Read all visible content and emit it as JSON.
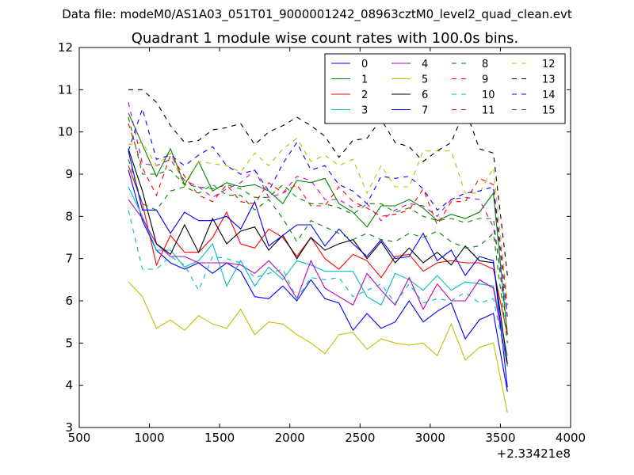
{
  "chart_data": {
    "type": "line",
    "suptitle": "Data file: modeM0/AS1A03_051T01_9000001242_08963cztM0_level2_quad_clean.evt",
    "title": "Quadrant 1 module wise count rates with 100.0s bins.",
    "xlabel": "",
    "ylabel": "",
    "x_offset_label": "+2.33421e8",
    "xlim": [
      500,
      4000
    ],
    "ylim": [
      3,
      12
    ],
    "x_ticks": [
      500,
      1000,
      1500,
      2000,
      2500,
      3000,
      3500,
      4000
    ],
    "y_ticks": [
      3,
      4,
      5,
      6,
      7,
      8,
      9,
      10,
      11,
      12
    ],
    "x": [
      850,
      950,
      1050,
      1150,
      1250,
      1350,
      1450,
      1550,
      1650,
      1750,
      1850,
      1950,
      2050,
      2150,
      2250,
      2350,
      2450,
      2550,
      2650,
      2750,
      2850,
      2950,
      3050,
      3150,
      3250,
      3350,
      3450,
      3550
    ],
    "legend_location": "upper right, 4 columns",
    "series": [
      {
        "name": "0",
        "color": "#0000ff",
        "dash": "solid",
        "values": [
          9.1,
          7.9,
          7.2,
          6.9,
          6.75,
          6.9,
          6.65,
          6.9,
          6.7,
          6.1,
          6.05,
          6.35,
          6.0,
          6.5,
          6.05,
          5.95,
          5.3,
          5.7,
          5.35,
          5.5,
          6.0,
          5.5,
          5.75,
          5.95,
          5.1,
          5.55,
          5.7,
          3.85
        ]
      },
      {
        "name": "1",
        "color": "#008000",
        "dash": "solid",
        "values": [
          10.45,
          9.7,
          8.95,
          9.6,
          8.75,
          9.3,
          8.6,
          8.8,
          8.7,
          8.75,
          8.6,
          8.3,
          8.85,
          8.8,
          8.9,
          8.3,
          8.1,
          7.75,
          8.25,
          8.25,
          8.4,
          8.2,
          7.9,
          8.05,
          7.95,
          8.1,
          8.55,
          5.2
        ]
      },
      {
        "name": "2",
        "color": "#ff0000",
        "dash": "solid",
        "values": [
          9.2,
          8.3,
          6.85,
          7.55,
          7.15,
          7.15,
          7.5,
          8.1,
          7.35,
          7.25,
          7.7,
          7.5,
          7.05,
          7.5,
          7.0,
          6.75,
          7.1,
          6.95,
          6.55,
          7.05,
          7.1,
          6.7,
          6.9,
          6.95,
          6.9,
          6.9,
          6.75,
          5.2
        ]
      },
      {
        "name": "3",
        "color": "#00bfbf",
        "dash": "solid",
        "values": [
          8.7,
          8.0,
          7.2,
          7.2,
          6.8,
          6.95,
          7.35,
          6.35,
          6.95,
          6.35,
          6.8,
          6.5,
          6.95,
          6.85,
          6.7,
          6.7,
          6.7,
          6.1,
          5.9,
          6.65,
          6.5,
          6.25,
          6.6,
          6.25,
          6.45,
          6.4,
          6.35,
          4.7
        ]
      },
      {
        "name": "4",
        "color": "#bf00bf",
        "dash": "solid",
        "values": [
          8.4,
          7.95,
          7.35,
          7.05,
          7.05,
          6.9,
          6.9,
          6.9,
          6.85,
          6.65,
          6.95,
          6.6,
          6.05,
          6.95,
          6.3,
          6.1,
          5.9,
          6.65,
          6.25,
          5.9,
          6.55,
          5.8,
          6.4,
          6.0,
          6.0,
          6.5,
          6.3,
          4.45
        ]
      },
      {
        "name": "5",
        "color": "#bfbf00",
        "dash": "solid",
        "values": [
          6.45,
          6.1,
          5.35,
          5.55,
          5.3,
          5.65,
          5.45,
          5.35,
          5.8,
          5.2,
          5.5,
          5.45,
          5.2,
          5.0,
          4.75,
          5.2,
          5.25,
          4.85,
          5.1,
          5.0,
          4.95,
          5.0,
          4.7,
          5.45,
          4.6,
          4.9,
          5.0,
          3.35
        ]
      },
      {
        "name": "6",
        "color": "#000000",
        "dash": "solid",
        "values": [
          9.6,
          8.6,
          7.35,
          7.1,
          7.8,
          7.15,
          7.95,
          7.35,
          7.65,
          7.75,
          7.2,
          7.55,
          7.0,
          7.5,
          7.2,
          7.35,
          7.45,
          7.0,
          7.4,
          6.9,
          7.25,
          6.9,
          7.15,
          6.85,
          7.3,
          6.95,
          6.9,
          4.5
        ]
      },
      {
        "name": "7",
        "color": "#0000ff",
        "dash": "solid",
        "values": [
          9.55,
          8.15,
          8.15,
          7.6,
          8.1,
          7.9,
          7.9,
          8.0,
          7.7,
          8.35,
          7.3,
          7.55,
          7.8,
          7.8,
          7.3,
          7.7,
          7.35,
          7.05,
          7.45,
          7.0,
          7.05,
          7.6,
          6.95,
          7.2,
          6.6,
          7.05,
          6.95,
          3.95
        ]
      },
      {
        "name": "8",
        "color": "#008000",
        "dash": "dashed",
        "values": [
          9.35,
          8.3,
          8.15,
          8.6,
          8.7,
          8.55,
          8.75,
          8.5,
          8.5,
          8.15,
          8.4,
          7.95,
          7.4,
          7.9,
          7.75,
          7.6,
          7.45,
          7.6,
          7.45,
          7.4,
          7.6,
          7.5,
          7.65,
          7.4,
          7.25,
          7.3,
          7.6,
          5.0
        ]
      },
      {
        "name": "9",
        "color": "#ff0000",
        "dash": "dashed",
        "values": [
          10.2,
          9.15,
          8.5,
          9.45,
          8.95,
          8.5,
          8.35,
          8.75,
          8.35,
          8.3,
          8.8,
          8.55,
          8.75,
          8.25,
          8.25,
          8.7,
          8.35,
          8.2,
          8.0,
          8.05,
          8.15,
          8.65,
          7.8,
          8.35,
          8.35,
          8.9,
          8.75,
          5.9
        ]
      },
      {
        "name": "10",
        "color": "#00bfbf",
        "dash": "dashed",
        "values": [
          8.15,
          6.75,
          6.75,
          7.05,
          6.85,
          6.25,
          7.05,
          7.0,
          6.9,
          6.55,
          6.65,
          6.75,
          6.05,
          6.55,
          6.5,
          6.55,
          6.1,
          6.25,
          6.4,
          5.95,
          6.4,
          5.95,
          6.05,
          6.0,
          6.2,
          5.95,
          6.05,
          4.45
        ]
      },
      {
        "name": "11",
        "color": "#bf00bf",
        "dash": "dashed",
        "values": [
          10.7,
          9.25,
          9.2,
          9.35,
          8.85,
          8.7,
          8.45,
          8.65,
          8.8,
          9.1,
          8.45,
          8.55,
          8.95,
          8.85,
          8.4,
          8.4,
          8.2,
          8.3,
          7.9,
          8.15,
          8.3,
          8.25,
          8.0,
          8.4,
          8.45,
          8.4,
          7.75,
          5.7
        ]
      },
      {
        "name": "12",
        "color": "#bfbf00",
        "dash": "dashed",
        "values": [
          9.7,
          9.75,
          9.2,
          9.5,
          8.7,
          9.3,
          9.25,
          9.2,
          9.05,
          9.5,
          9.2,
          9.6,
          9.85,
          9.3,
          9.45,
          9.2,
          9.35,
          8.55,
          9.2,
          8.7,
          8.7,
          9.55,
          9.55,
          9.55,
          8.55,
          8.55,
          9.15,
          6.0
        ]
      },
      {
        "name": "13",
        "color": "#000000",
        "dash": "dashed",
        "values": [
          11.0,
          11.0,
          10.7,
          10.15,
          9.75,
          9.8,
          10.05,
          10.1,
          10.2,
          9.7,
          10.0,
          10.15,
          10.35,
          10.15,
          9.9,
          9.4,
          9.8,
          9.85,
          10.3,
          9.75,
          9.65,
          9.3,
          9.55,
          9.75,
          10.55,
          9.6,
          9.5,
          6.6
        ]
      },
      {
        "name": "14",
        "color": "#0000ff",
        "dash": "dashed",
        "values": [
          9.55,
          10.55,
          9.35,
          9.45,
          9.2,
          9.45,
          9.65,
          9.2,
          9.0,
          9.1,
          8.6,
          9.25,
          9.75,
          9.1,
          9.2,
          8.75,
          8.6,
          8.3,
          8.95,
          8.9,
          8.95,
          8.65,
          8.15,
          8.4,
          8.55,
          8.6,
          8.7,
          5.6
        ]
      },
      {
        "name": "15",
        "color": "#008000",
        "dash": "dashed",
        "values": [
          10.35,
          9.0,
          9.0,
          9.1,
          8.75,
          8.7,
          8.65,
          8.75,
          8.65,
          8.45,
          8.45,
          8.75,
          8.45,
          8.3,
          8.3,
          8.2,
          8.05,
          8.3,
          8.3,
          8.1,
          8.2,
          8.0,
          7.9,
          7.95,
          7.85,
          7.95,
          7.95,
          5.25
        ]
      }
    ]
  }
}
